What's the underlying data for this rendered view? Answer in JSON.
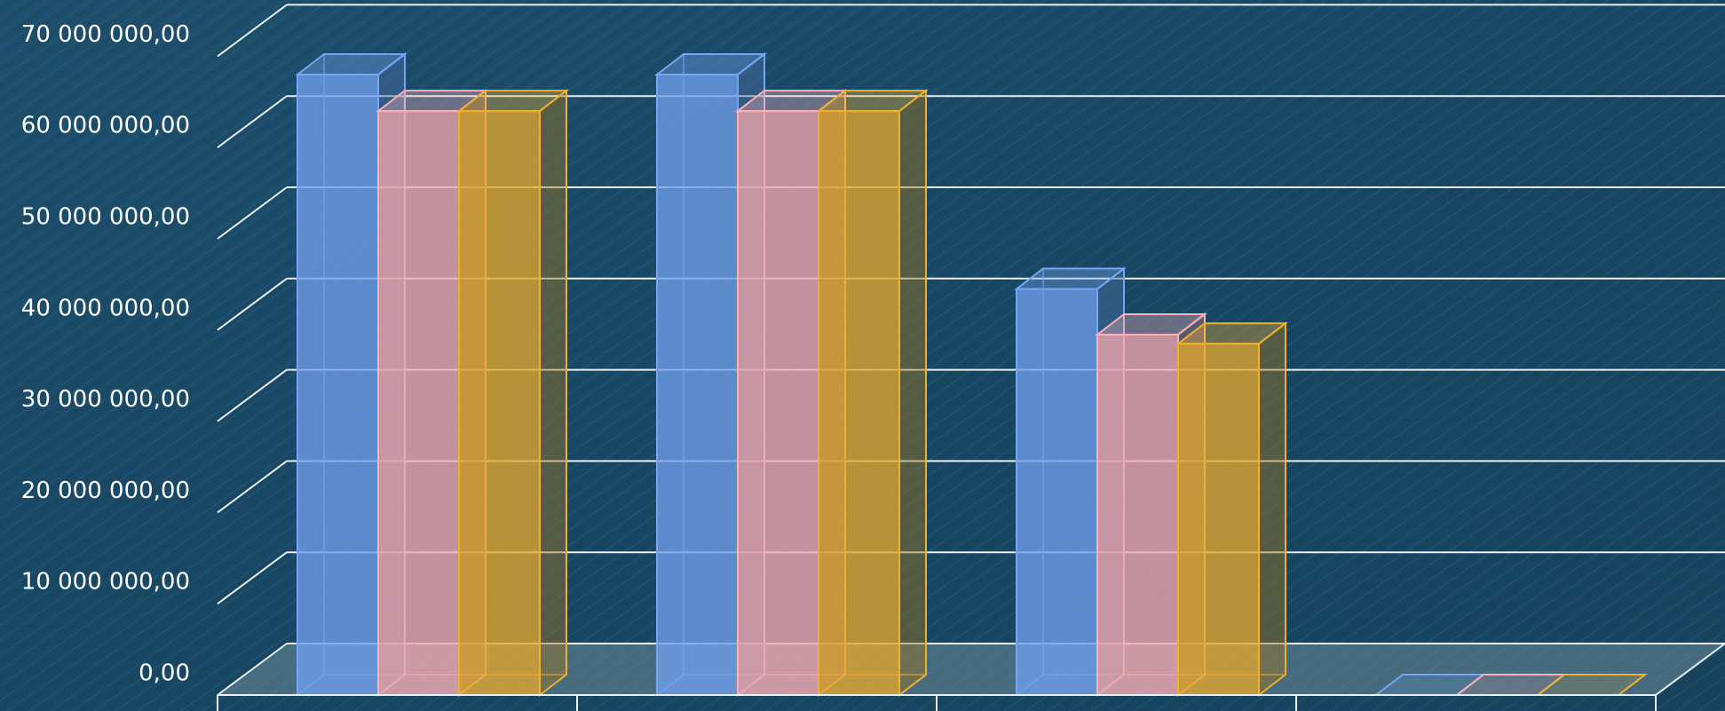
{
  "chart_data": {
    "type": "bar",
    "categories": [
      "",
      "",
      "",
      ""
    ],
    "series": [
      {
        "values": [
          68000000,
          68000000,
          44500000,
          0
        ],
        "color": "#6f9eea"
      },
      {
        "values": [
          64000000,
          64000000,
          39500000,
          0
        ],
        "color": "#f2a6ae"
      },
      {
        "values": [
          64000000,
          64000000,
          38500000,
          0
        ],
        "color": "#e4a72d"
      }
    ],
    "ylim": [
      0,
      70000000
    ],
    "yticks": [
      "0,00",
      "10 000 000,00",
      "20 000 000,00",
      "30 000 000,00",
      "40 000 000,00",
      "50 000 000,00",
      "60 000 000,00",
      "70 000 000,00"
    ],
    "grid": true,
    "three_d": true,
    "background_color": "#1b4a66"
  }
}
